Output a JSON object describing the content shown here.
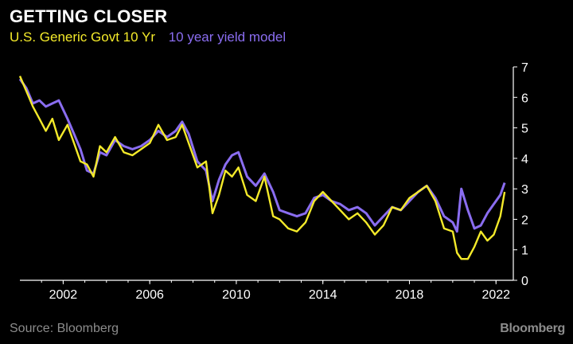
{
  "title": "GETTING CLOSER",
  "source": "Source: Bloomberg",
  "brand": "Bloomberg",
  "chart_data": {
    "type": "line",
    "xlim": [
      2000.0,
      2022.8
    ],
    "ylim": [
      0,
      7
    ],
    "x_ticks": [
      "2002",
      "2006",
      "2010",
      "2014",
      "2018",
      "2022"
    ],
    "y_ticks": [
      "0",
      "1",
      "2",
      "3",
      "4",
      "5",
      "6",
      "7"
    ],
    "grid": false,
    "legend_position": "top-left",
    "series": [
      {
        "name": "10 year yield model",
        "color": "#8a6df0",
        "x": [
          2000.0,
          2000.3,
          2000.6,
          2000.9,
          2001.2,
          2001.5,
          2001.8,
          2002.2,
          2002.5,
          2002.8,
          2003.1,
          2003.4,
          2003.7,
          2004.0,
          2004.4,
          2004.8,
          2005.2,
          2005.6,
          2006.0,
          2006.4,
          2006.8,
          2007.2,
          2007.5,
          2007.8,
          2008.2,
          2008.6,
          2008.9,
          2009.2,
          2009.5,
          2009.8,
          2010.1,
          2010.5,
          2010.9,
          2011.3,
          2011.7,
          2012.0,
          2012.4,
          2012.8,
          2013.2,
          2013.6,
          2014.0,
          2014.4,
          2014.8,
          2015.2,
          2015.6,
          2016.0,
          2016.4,
          2016.8,
          2017.2,
          2017.6,
          2018.0,
          2018.4,
          2018.8,
          2019.2,
          2019.6,
          2020.0,
          2020.2,
          2020.4,
          2020.7,
          2021.0,
          2021.3,
          2021.6,
          2021.9,
          2022.2,
          2022.4
        ],
        "values": [
          6.6,
          6.3,
          5.8,
          5.9,
          5.7,
          5.8,
          5.9,
          5.3,
          4.8,
          4.3,
          3.6,
          3.5,
          4.2,
          4.1,
          4.6,
          4.4,
          4.3,
          4.4,
          4.6,
          4.9,
          4.7,
          4.9,
          5.2,
          4.8,
          3.9,
          3.6,
          2.6,
          3.3,
          3.8,
          4.1,
          4.2,
          3.4,
          3.1,
          3.5,
          2.9,
          2.3,
          2.2,
          2.1,
          2.2,
          2.7,
          2.8,
          2.6,
          2.5,
          2.3,
          2.4,
          2.2,
          1.8,
          2.1,
          2.4,
          2.3,
          2.6,
          2.9,
          3.1,
          2.7,
          2.1,
          1.9,
          1.6,
          3.0,
          2.3,
          1.7,
          1.8,
          2.2,
          2.5,
          2.8,
          3.2
        ]
      },
      {
        "name": "U.S. Generic Govt 10 Yr",
        "color": "#f4ea2a",
        "x": [
          2000.0,
          2000.3,
          2000.6,
          2000.9,
          2001.2,
          2001.5,
          2001.8,
          2002.2,
          2002.5,
          2002.8,
          2003.1,
          2003.4,
          2003.7,
          2004.0,
          2004.4,
          2004.8,
          2005.2,
          2005.6,
          2006.0,
          2006.4,
          2006.8,
          2007.2,
          2007.5,
          2007.8,
          2008.2,
          2008.6,
          2008.9,
          2009.2,
          2009.5,
          2009.8,
          2010.1,
          2010.5,
          2010.9,
          2011.3,
          2011.7,
          2012.0,
          2012.4,
          2012.8,
          2013.2,
          2013.6,
          2014.0,
          2014.4,
          2014.8,
          2015.2,
          2015.6,
          2016.0,
          2016.4,
          2016.8,
          2017.2,
          2017.6,
          2018.0,
          2018.4,
          2018.8,
          2019.2,
          2019.6,
          2020.0,
          2020.2,
          2020.4,
          2020.7,
          2021.0,
          2021.3,
          2021.6,
          2021.9,
          2022.2,
          2022.4
        ],
        "values": [
          6.7,
          6.2,
          5.7,
          5.3,
          4.9,
          5.3,
          4.6,
          5.1,
          4.5,
          3.9,
          3.8,
          3.4,
          4.4,
          4.2,
          4.7,
          4.2,
          4.1,
          4.3,
          4.5,
          5.1,
          4.6,
          4.7,
          5.1,
          4.5,
          3.7,
          3.9,
          2.2,
          2.8,
          3.6,
          3.4,
          3.7,
          2.8,
          2.6,
          3.4,
          2.1,
          2.0,
          1.7,
          1.6,
          1.9,
          2.6,
          2.9,
          2.6,
          2.3,
          2.0,
          2.2,
          1.9,
          1.5,
          1.8,
          2.4,
          2.3,
          2.7,
          2.9,
          3.1,
          2.6,
          1.7,
          1.6,
          0.9,
          0.7,
          0.7,
          1.1,
          1.6,
          1.3,
          1.5,
          2.1,
          2.9
        ]
      }
    ]
  }
}
